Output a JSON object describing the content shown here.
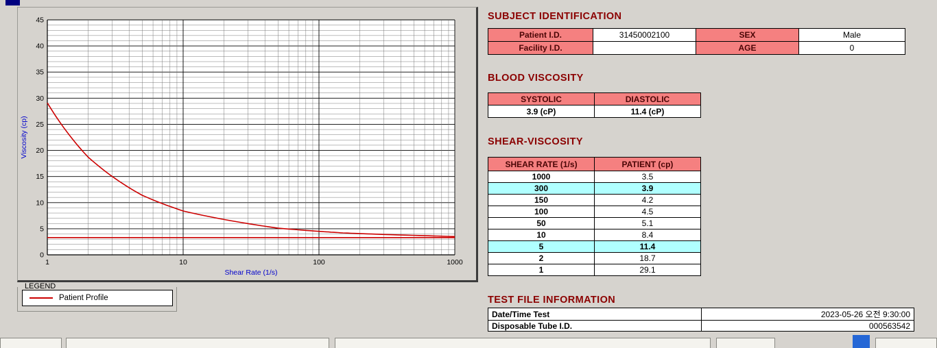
{
  "colors": {
    "maroon_header_text": "#8b0000",
    "cell_pink": "#f58080",
    "highlight_cyan": "#b0ffff",
    "curve_red": "#cc0000",
    "axis_blue": "#0000cc"
  },
  "subject": {
    "title": "SUBJECT IDENTIFICATION",
    "rows": [
      {
        "label1": "Patient I.D.",
        "value1": "31450002100",
        "label2": "SEX",
        "value2": "Male"
      },
      {
        "label1": "Facility I.D.",
        "value1": "",
        "label2": "AGE",
        "value2": "0"
      }
    ]
  },
  "blood": {
    "title": "BLOOD VISCOSITY",
    "headers": [
      "SYSTOLIC",
      "DIASTOLIC"
    ],
    "values": [
      "3.9 (cP)",
      "11.4 (cP)"
    ]
  },
  "shear": {
    "title": "SHEAR-VISCOSITY",
    "headers": [
      "SHEAR RATE (1/s)",
      "PATIENT (cp)"
    ],
    "rows": [
      {
        "rate": "1000",
        "value": "3.5",
        "highlight": false
      },
      {
        "rate": "300",
        "value": "3.9",
        "highlight": true
      },
      {
        "rate": "150",
        "value": "4.2",
        "highlight": false
      },
      {
        "rate": "100",
        "value": "4.5",
        "highlight": false
      },
      {
        "rate": "50",
        "value": "5.1",
        "highlight": false
      },
      {
        "rate": "10",
        "value": "8.4",
        "highlight": false
      },
      {
        "rate": "5",
        "value": "11.4",
        "highlight": true
      },
      {
        "rate": "2",
        "value": "18.7",
        "highlight": false
      },
      {
        "rate": "1",
        "value": "29.1",
        "highlight": false
      }
    ]
  },
  "testfile": {
    "title": "TEST FILE INFORMATION",
    "rows": [
      {
        "label": "Date/Time Test",
        "value": "2023-05-26  오전 9:30:00"
      },
      {
        "label": "Disposable Tube I.D.",
        "value": "000563542"
      }
    ]
  },
  "legend": {
    "box_label": "LEGEND",
    "series_label": "Patient Profile"
  },
  "chart_data": {
    "type": "line",
    "title": "",
    "xlabel": "Shear Rate (1/s)",
    "ylabel": "Viscosity (cp)",
    "x_scale": "log",
    "xlim": [
      1,
      1000
    ],
    "ylim": [
      0,
      45
    ],
    "x_ticks": [
      1,
      10,
      100,
      1000
    ],
    "y_ticks": [
      0,
      5,
      10,
      15,
      20,
      25,
      30,
      35,
      40,
      45
    ],
    "grid": "minor+major",
    "legend_position": "below-left",
    "series": [
      {
        "name": "Patient Profile",
        "color": "#cc0000",
        "x": [
          1,
          2,
          5,
          10,
          50,
          100,
          150,
          300,
          1000
        ],
        "y": [
          29.1,
          18.7,
          11.4,
          8.4,
          5.1,
          4.5,
          4.2,
          3.9,
          3.5
        ]
      },
      {
        "name": "flat-reference-line",
        "color": "#cc0000",
        "x": [
          1,
          1000
        ],
        "y": [
          3.3,
          3.3
        ]
      }
    ]
  }
}
